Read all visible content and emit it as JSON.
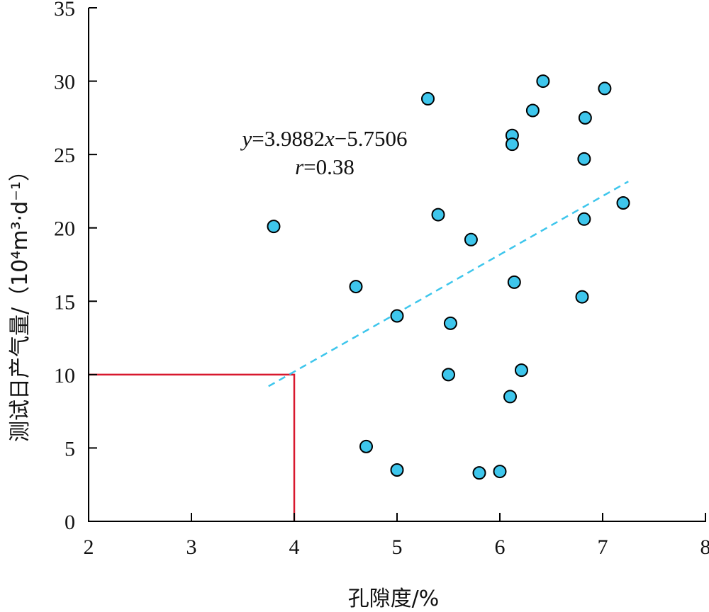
{
  "chart_data": {
    "type": "scatter",
    "xlabel": "孔隙度/%",
    "ylabel": "测试日产气量/（10⁴m³·d⁻¹）",
    "xlim": [
      2,
      8
    ],
    "ylim": [
      0,
      35
    ],
    "xticks": [
      2,
      3,
      4,
      5,
      6,
      7,
      8
    ],
    "yticks": [
      0,
      5,
      10,
      15,
      20,
      25,
      30,
      35
    ],
    "grid": false,
    "colors": {
      "point_fill": "#3ec6ec",
      "trend_line": "#3ec6ec",
      "cutoff_line": "#d8182e",
      "axis": "#000000"
    },
    "points": [
      {
        "x": 3.8,
        "y": 20.1
      },
      {
        "x": 4.6,
        "y": 16.0
      },
      {
        "x": 4.7,
        "y": 5.1
      },
      {
        "x": 5.0,
        "y": 14.0
      },
      {
        "x": 5.0,
        "y": 3.5
      },
      {
        "x": 5.3,
        "y": 28.8
      },
      {
        "x": 5.4,
        "y": 20.9
      },
      {
        "x": 5.5,
        "y": 10.0
      },
      {
        "x": 5.52,
        "y": 13.5
      },
      {
        "x": 5.72,
        "y": 19.2
      },
      {
        "x": 5.8,
        "y": 3.3
      },
      {
        "x": 6.0,
        "y": 3.4
      },
      {
        "x": 6.1,
        "y": 8.5
      },
      {
        "x": 6.12,
        "y": 26.3
      },
      {
        "x": 6.12,
        "y": 25.7
      },
      {
        "x": 6.14,
        "y": 16.3
      },
      {
        "x": 6.21,
        "y": 10.3
      },
      {
        "x": 6.32,
        "y": 28.0
      },
      {
        "x": 6.42,
        "y": 30.0
      },
      {
        "x": 6.8,
        "y": 15.3
      },
      {
        "x": 6.82,
        "y": 24.7
      },
      {
        "x": 6.82,
        "y": 20.6
      },
      {
        "x": 6.83,
        "y": 27.5
      },
      {
        "x": 7.02,
        "y": 29.5
      },
      {
        "x": 7.2,
        "y": 21.7
      }
    ],
    "trendline": {
      "slope": 3.9882,
      "intercept": -5.7506,
      "x_range": [
        3.75,
        7.25
      ]
    },
    "cutoff": {
      "x": 4,
      "y": 10
    },
    "annotation": {
      "equation_y": "y",
      "equation_rest": "=3.9882",
      "equation_x": "x",
      "equation_tail": "−5.7506",
      "r_symbol": "r",
      "r_value": "=0.38"
    }
  }
}
